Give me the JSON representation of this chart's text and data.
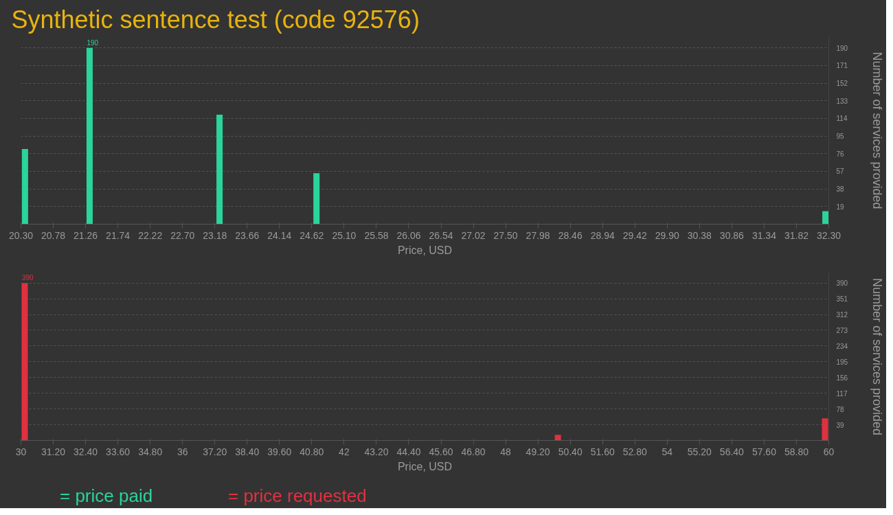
{
  "chart_data": [
    {
      "type": "bar",
      "title": "Synthetic sentence test (code 92576)",
      "xlabel": "Price, USD",
      "ylabel": "Number of services provided",
      "x": [
        20.36,
        21.32,
        23.25,
        24.69,
        32.25
      ],
      "series": [
        {
          "name": "= price paid",
          "color": "#2ad49b",
          "values": [
            81,
            190,
            118,
            55,
            14
          ],
          "value_labels": [
            null,
            "190",
            null,
            null,
            null
          ]
        }
      ],
      "xlim": [
        20.3,
        32.3
      ],
      "xticks": [
        {
          "value": 20.3,
          "label": "20.30"
        },
        {
          "value": 20.78,
          "label": "20.78"
        },
        {
          "value": 21.26,
          "label": "21.26"
        },
        {
          "value": 21.74,
          "label": "21.74"
        },
        {
          "value": 22.22,
          "label": "22.22"
        },
        {
          "value": 22.7,
          "label": "22.70"
        },
        {
          "value": 23.18,
          "label": "23.18"
        },
        {
          "value": 23.66,
          "label": "23.66"
        },
        {
          "value": 24.14,
          "label": "24.14"
        },
        {
          "value": 24.62,
          "label": "24.62"
        },
        {
          "value": 25.1,
          "label": "25.10"
        },
        {
          "value": 25.58,
          "label": "25.58"
        },
        {
          "value": 26.06,
          "label": "26.06"
        },
        {
          "value": 26.54,
          "label": "26.54"
        },
        {
          "value": 27.02,
          "label": "27.02"
        },
        {
          "value": 27.5,
          "label": "27.50"
        },
        {
          "value": 27.98,
          "label": "27.98"
        },
        {
          "value": 28.46,
          "label": "28.46"
        },
        {
          "value": 28.94,
          "label": "28.94"
        },
        {
          "value": 29.42,
          "label": "29.42"
        },
        {
          "value": 29.9,
          "label": "29.90"
        },
        {
          "value": 30.38,
          "label": "30.38"
        },
        {
          "value": 30.86,
          "label": "30.86"
        },
        {
          "value": 31.34,
          "label": "31.34"
        },
        {
          "value": 31.82,
          "label": "31.82"
        },
        {
          "value": 32.3,
          "label": "32.30"
        }
      ],
      "ylim": [
        0,
        202
      ],
      "yticks": [
        19,
        38,
        57,
        76,
        95,
        114,
        133,
        152,
        171,
        190
      ],
      "grid": "y",
      "legend": "bottom left"
    },
    {
      "type": "bar",
      "xlabel": "Price, USD",
      "ylabel": "Number of services provided",
      "x": [
        30.14,
        49.94,
        59.86
      ],
      "series": [
        {
          "name": "= price requested",
          "color": "#e03140",
          "values": [
            390,
            14,
            55
          ],
          "value_labels": [
            "390",
            null,
            null
          ]
        }
      ],
      "xlim": [
        30,
        60
      ],
      "xticks": [
        30,
        {
          "value": 31.2,
          "label": "31.20"
        },
        {
          "value": 32.4,
          "label": "32.40"
        },
        {
          "value": 33.6,
          "label": "33.60"
        },
        {
          "value": 34.8,
          "label": "34.80"
        },
        36,
        {
          "value": 37.2,
          "label": "37.20"
        },
        {
          "value": 38.4,
          "label": "38.40"
        },
        {
          "value": 39.6,
          "label": "39.60"
        },
        {
          "value": 40.8,
          "label": "40.80"
        },
        42,
        {
          "value": 43.2,
          "label": "43.20"
        },
        {
          "value": 44.4,
          "label": "44.40"
        },
        {
          "value": 45.6,
          "label": "45.60"
        },
        {
          "value": 46.8,
          "label": "46.80"
        },
        48,
        {
          "value": 49.2,
          "label": "49.20"
        },
        {
          "value": 50.4,
          "label": "50.40"
        },
        {
          "value": 51.6,
          "label": "51.60"
        },
        {
          "value": 52.8,
          "label": "52.80"
        },
        54,
        {
          "value": 55.2,
          "label": "55.20"
        },
        {
          "value": 56.4,
          "label": "56.40"
        },
        {
          "value": 57.6,
          "label": "57.60"
        },
        {
          "value": 58.8,
          "label": "58.80"
        },
        60
      ],
      "ylim": [
        0,
        415
      ],
      "yticks": [
        39,
        78,
        117,
        156,
        195,
        234,
        273,
        312,
        351,
        390
      ],
      "grid": "y",
      "legend": "bottom left"
    }
  ]
}
